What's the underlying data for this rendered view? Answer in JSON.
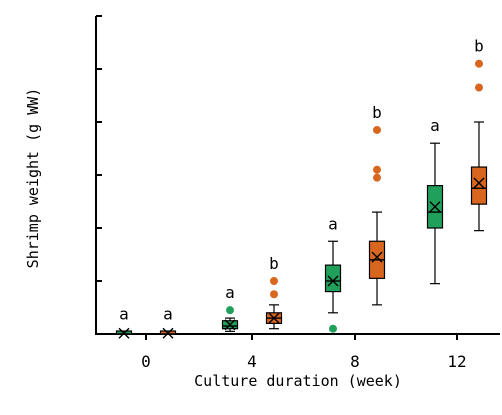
{
  "chart_data": {
    "type": "box",
    "xlabel": "Culture duration (week)",
    "ylabel": "Shrimp weight (g WW)",
    "categories": [
      "0",
      "4",
      "8",
      "12"
    ],
    "ylim": [
      0,
      12
    ],
    "ytick_step": 2,
    "show_ytick_labels": false,
    "grid": false,
    "legend": "none",
    "series": [
      {
        "color": "#20a05a",
        "groups": [
          {
            "category": "0",
            "min": 0.0,
            "q1": 0.0,
            "median": 0.0,
            "q3": 0.05,
            "max": 0.1,
            "mean": 0.03,
            "outliers": [],
            "label": "a"
          },
          {
            "category": "4",
            "min": 0.1,
            "q1": 0.2,
            "median": 0.3,
            "q3": 0.5,
            "max": 0.6,
            "mean": 0.35,
            "outliers": [
              0.9
            ],
            "label": "a"
          },
          {
            "category": "8",
            "min": 0.8,
            "q1": 1.6,
            "median": 2.0,
            "q3": 2.6,
            "max": 3.5,
            "mean": 2.0,
            "outliers": [
              0.2
            ],
            "label": "a"
          },
          {
            "category": "12",
            "min": 1.9,
            "q1": 4.0,
            "median": 4.6,
            "q3": 5.6,
            "max": 7.2,
            "mean": 4.8,
            "outliers": [],
            "label": "a"
          }
        ]
      },
      {
        "color": "#d9661f",
        "groups": [
          {
            "category": "0",
            "min": 0.0,
            "q1": 0.0,
            "median": 0.0,
            "q3": 0.05,
            "max": 0.1,
            "mean": 0.03,
            "outliers": [],
            "label": "a"
          },
          {
            "category": "4",
            "min": 0.2,
            "q1": 0.4,
            "median": 0.6,
            "q3": 0.8,
            "max": 1.1,
            "mean": 0.6,
            "outliers": [
              1.5,
              2.0
            ],
            "label": "b"
          },
          {
            "category": "8",
            "min": 1.1,
            "q1": 2.1,
            "median": 2.8,
            "q3": 3.5,
            "max": 4.6,
            "mean": 2.9,
            "outliers": [
              5.9,
              6.2,
              7.7
            ],
            "label": "b"
          },
          {
            "category": "12",
            "min": 3.9,
            "q1": 4.9,
            "median": 5.5,
            "q3": 6.3,
            "max": 8.0,
            "mean": 5.7,
            "outliers": [
              9.3,
              10.2
            ],
            "label": "b"
          }
        ]
      }
    ]
  }
}
